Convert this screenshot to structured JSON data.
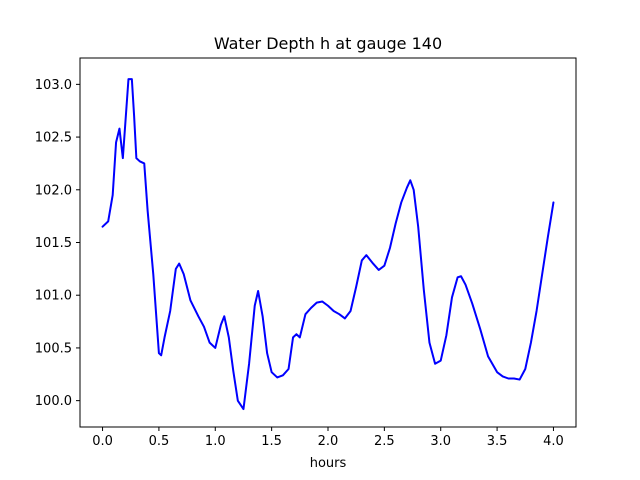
{
  "chart_data": {
    "type": "line",
    "title": "Water Depth h at gauge 140",
    "xlabel": "hours",
    "ylabel": "",
    "xlim": [
      -0.2,
      4.2
    ],
    "ylim": [
      99.75,
      103.25
    ],
    "xticks": [
      0.0,
      0.5,
      1.0,
      1.5,
      2.0,
      2.5,
      3.0,
      3.5,
      4.0
    ],
    "xtick_labels": [
      "0.0",
      "0.5",
      "1.0",
      "1.5",
      "2.0",
      "2.5",
      "3.0",
      "3.5",
      "4.0"
    ],
    "yticks": [
      100.0,
      100.5,
      101.0,
      101.5,
      102.0,
      102.5,
      103.0
    ],
    "ytick_labels": [
      "100.0",
      "100.5",
      "101.0",
      "101.5",
      "102.0",
      "102.5",
      "103.0"
    ],
    "grid": false,
    "series": [
      {
        "color": "#0000ff",
        "x": [
          0.0,
          0.05,
          0.09,
          0.12,
          0.15,
          0.18,
          0.2,
          0.23,
          0.26,
          0.28,
          0.3,
          0.33,
          0.37,
          0.4,
          0.45,
          0.5,
          0.52,
          0.55,
          0.6,
          0.65,
          0.68,
          0.72,
          0.78,
          0.85,
          0.9,
          0.95,
          1.0,
          1.05,
          1.08,
          1.12,
          1.16,
          1.2,
          1.25,
          1.3,
          1.35,
          1.38,
          1.42,
          1.46,
          1.5,
          1.55,
          1.6,
          1.65,
          1.69,
          1.72,
          1.75,
          1.8,
          1.85,
          1.9,
          1.95,
          2.0,
          2.05,
          2.1,
          2.15,
          2.2,
          2.25,
          2.3,
          2.34,
          2.4,
          2.45,
          2.5,
          2.55,
          2.6,
          2.65,
          2.7,
          2.73,
          2.76,
          2.8,
          2.85,
          2.9,
          2.95,
          3.0,
          3.05,
          3.1,
          3.15,
          3.18,
          3.22,
          3.28,
          3.35,
          3.42,
          3.5,
          3.55,
          3.6,
          3.65,
          3.7,
          3.75,
          3.8,
          3.85,
          3.9,
          3.95,
          4.0
        ],
        "y": [
          101.65,
          101.7,
          101.95,
          102.45,
          102.58,
          102.3,
          102.6,
          103.05,
          103.05,
          102.7,
          102.3,
          102.27,
          102.25,
          101.8,
          101.2,
          100.45,
          100.43,
          100.6,
          100.85,
          101.25,
          101.3,
          101.2,
          100.95,
          100.8,
          100.7,
          100.55,
          100.5,
          100.72,
          100.8,
          100.6,
          100.28,
          100.0,
          99.92,
          100.35,
          100.9,
          101.04,
          100.8,
          100.45,
          100.27,
          100.22,
          100.24,
          100.3,
          100.6,
          100.63,
          100.6,
          100.82,
          100.88,
          100.93,
          100.94,
          100.9,
          100.85,
          100.82,
          100.78,
          100.85,
          101.08,
          101.33,
          101.38,
          101.3,
          101.24,
          101.28,
          101.45,
          101.68,
          101.88,
          102.02,
          102.09,
          102.0,
          101.65,
          101.05,
          100.55,
          100.35,
          100.38,
          100.62,
          100.98,
          101.17,
          101.18,
          101.1,
          100.92,
          100.68,
          100.42,
          100.27,
          100.23,
          100.21,
          100.21,
          100.2,
          100.3,
          100.55,
          100.85,
          101.2,
          101.55,
          101.88
        ]
      }
    ]
  }
}
